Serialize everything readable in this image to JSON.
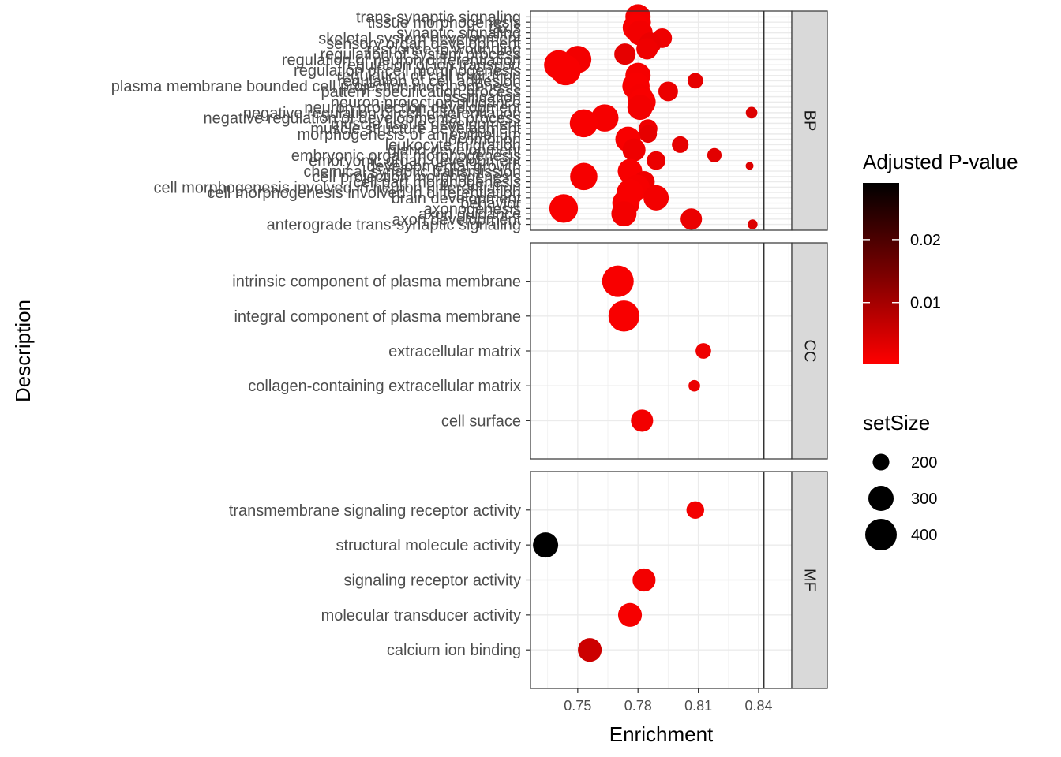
{
  "chart_data": {
    "type": "scatter",
    "xlabel": "Enrichment",
    "ylabel": "Description",
    "x_ticks": [
      0.75,
      0.78,
      0.81,
      0.84
    ],
    "x_tick_labels": [
      "0.75",
      "0.78",
      "0.81",
      "0.84"
    ],
    "xlim": [
      0.7265,
      0.8565
    ],
    "vline_x": 0.8425,
    "grid": true,
    "legend_position": "right",
    "legend_color": {
      "title": "Adjusted P-value",
      "labels": [
        "0.02",
        "0.01"
      ],
      "ticks": [
        0.02,
        0.01
      ],
      "range": [
        0.0002,
        0.029
      ],
      "low_color": "#ff0000",
      "high_color": "#000000"
    },
    "legend_size": {
      "title": "setSize",
      "labels": [
        "200",
        "300",
        "400"
      ],
      "values": [
        200,
        300,
        400
      ]
    },
    "facets": [
      {
        "label": "BP",
        "categories": [
          "trans-synaptic signaling",
          "tissue morphogenesis",
          "taxis",
          "synaptic signaling",
          "skeletal system development",
          "sensory organ development",
          "response to wounding",
          "regulation of system process",
          "regulation of neuron differentiation",
          "regulation of ion transport",
          "regulation of cell morphogenesis",
          "regulation of cell migration",
          "regulation of cell adhesion",
          "plasma membrane bounded cell projection morphogenesis",
          "pattern specification process",
          "ossification",
          "neuron projection guidance",
          "neuron projection development",
          "negative regulation of cell differentiation",
          "negative regulation of developmental process",
          "muscle tissue development",
          "muscle structure development",
          "morphogenesis of an epithelium",
          "locomotion",
          "leukocyte migration",
          "gland development",
          "embryonic organ morphogenesis",
          "embryonic organ development",
          "developmental growth",
          "chemical synaptic transmission",
          "cell projection morphogenesis",
          "cell part morphogenesis",
          "cell morphogenesis involved in neuron differentiation",
          "cell morphogenesis involved in differentiation",
          "brain development",
          "behavior",
          "axonogenesis",
          "axon guidance",
          "axon development",
          "anterograde trans-synaptic signaling"
        ],
        "points": [
          {
            "y": "trans-synaptic signaling",
            "x": 0.78,
            "setSize": 300,
            "padj": 0.0015
          },
          {
            "y": "tissue morphogenesis",
            "x": 0.7805,
            "setSize": 280,
            "padj": 0.0012
          },
          {
            "y": "taxis",
            "x": 0.779,
            "setSize": 320,
            "padj": 0.001
          },
          {
            "y": "synaptic signaling",
            "x": 0.781,
            "setSize": 300,
            "padj": 0.0015
          },
          {
            "y": "skeletal system development",
            "x": 0.792,
            "setSize": 230,
            "padj": 0.002
          },
          {
            "y": "sensory organ development",
            "x": 0.786,
            "setSize": 260,
            "padj": 0.0025
          },
          {
            "y": "response to wounding",
            "x": 0.7845,
            "setSize": 250,
            "padj": 0.002
          },
          {
            "y": "regulation of system process",
            "x": 0.7735,
            "setSize": 250,
            "padj": 0.003
          },
          {
            "y": "regulation of neuron differentiation",
            "x": 0.75,
            "setSize": 330,
            "padj": 0.0015
          },
          {
            "y": "regulation of ion transport",
            "x": 0.7405,
            "setSize": 360,
            "padj": 0.001
          },
          {
            "y": "regulation of cell morphogenesis",
            "x": 0.744,
            "setSize": 380,
            "padj": 0.001
          },
          {
            "y": "regulation of cell migration",
            "x": 0.78,
            "setSize": 300,
            "padj": 0.0012
          },
          {
            "y": "regulation of cell adhesion",
            "x": 0.8085,
            "setSize": 190,
            "padj": 0.003
          },
          {
            "y": "plasma membrane bounded cell projection morphogenesis",
            "x": 0.779,
            "setSize": 330,
            "padj": 0.001
          },
          {
            "y": "pattern specification process",
            "x": 0.795,
            "setSize": 230,
            "padj": 0.0025
          },
          {
            "y": "ossification",
            "x": 0.781,
            "setSize": 300,
            "padj": 0.0012
          },
          {
            "y": "neuron projection guidance",
            "x": 0.782,
            "setSize": 330,
            "padj": 0.001
          },
          {
            "y": "neuron projection development",
            "x": 0.781,
            "setSize": 300,
            "padj": 0.0015
          },
          {
            "y": "negative regulation of cell differentiation",
            "x": 0.8365,
            "setSize": 160,
            "padj": 0.004
          },
          {
            "y": "negative regulation of developmental process",
            "x": 0.7635,
            "setSize": 330,
            "padj": 0.0012
          },
          {
            "y": "muscle tissue development",
            "x": 0.753,
            "setSize": 340,
            "padj": 0.001
          },
          {
            "y": "muscle structure development",
            "x": 0.785,
            "setSize": 220,
            "padj": 0.002
          },
          {
            "y": "morphogenesis of an epithelium",
            "x": 0.785,
            "setSize": 210,
            "padj": 0.003
          },
          {
            "y": "locomotion",
            "x": 0.775,
            "setSize": 300,
            "padj": 0.001
          },
          {
            "y": "leukocyte migration",
            "x": 0.801,
            "setSize": 200,
            "padj": 0.003
          },
          {
            "y": "gland development",
            "x": 0.778,
            "setSize": 270,
            "padj": 0.002
          },
          {
            "y": "embryonic organ morphogenesis",
            "x": 0.818,
            "setSize": 180,
            "padj": 0.0035
          },
          {
            "y": "embryonic organ development",
            "x": 0.789,
            "setSize": 220,
            "padj": 0.0025
          },
          {
            "y": "developmental growth",
            "x": 0.8355,
            "setSize": 140,
            "padj": 0.004
          },
          {
            "y": "chemical synaptic transmission",
            "x": 0.776,
            "setSize": 290,
            "padj": 0.001
          },
          {
            "y": "cell projection morphogenesis",
            "x": 0.753,
            "setSize": 330,
            "padj": 0.0012
          },
          {
            "y": "cell part morphogenesis",
            "x": 0.783,
            "setSize": 250,
            "padj": 0.002
          },
          {
            "y": "cell morphogenesis involved in neuron differentiation",
            "x": 0.7795,
            "setSize": 300,
            "padj": 0.0012
          },
          {
            "y": "cell morphogenesis involved in differentiation",
            "x": 0.776,
            "setSize": 320,
            "padj": 0.001
          },
          {
            "y": "brain development",
            "x": 0.789,
            "setSize": 300,
            "padj": 0.0015
          },
          {
            "y": "behavior",
            "x": 0.774,
            "setSize": 330,
            "padj": 0.001
          },
          {
            "y": "axonogenesis",
            "x": 0.743,
            "setSize": 350,
            "padj": 0.001
          },
          {
            "y": "axon guidance",
            "x": 0.773,
            "setSize": 300,
            "padj": 0.0015
          },
          {
            "y": "axon development",
            "x": 0.8065,
            "setSize": 250,
            "padj": 0.0025
          },
          {
            "y": "anterograde trans-synaptic signaling",
            "x": 0.837,
            "setSize": 150,
            "padj": 0.004
          }
        ]
      },
      {
        "label": "CC",
        "categories": [
          "intrinsic component of plasma membrane",
          "integral component of plasma membrane",
          "extracellular matrix",
          "collagen-containing extracellular matrix",
          "cell surface"
        ],
        "points": [
          {
            "y": "intrinsic component of plasma membrane",
            "x": 0.77,
            "setSize": 400,
            "padj": 0.001
          },
          {
            "y": "integral component of plasma membrane",
            "x": 0.773,
            "setSize": 390,
            "padj": 0.001
          },
          {
            "y": "extracellular matrix",
            "x": 0.8125,
            "setSize": 190,
            "padj": 0.002
          },
          {
            "y": "collagen-containing extracellular matrix",
            "x": 0.808,
            "setSize": 160,
            "padj": 0.0025
          },
          {
            "y": "cell surface",
            "x": 0.782,
            "setSize": 260,
            "padj": 0.0015
          }
        ]
      },
      {
        "label": "MF",
        "categories": [
          "transmembrane signaling receptor activity",
          "structural molecule activity",
          "signaling receptor activity",
          "molecular transducer activity",
          "calcium ion binding"
        ],
        "points": [
          {
            "y": "transmembrane signaling receptor activity",
            "x": 0.8085,
            "setSize": 210,
            "padj": 0.0015
          },
          {
            "y": "structural molecule activity",
            "x": 0.734,
            "setSize": 300,
            "padj": 0.029
          },
          {
            "y": "signaling receptor activity",
            "x": 0.783,
            "setSize": 270,
            "padj": 0.0015
          },
          {
            "y": "molecular transducer activity",
            "x": 0.776,
            "setSize": 280,
            "padj": 0.0012
          },
          {
            "y": "calcium ion binding",
            "x": 0.756,
            "setSize": 280,
            "padj": 0.006
          }
        ]
      }
    ]
  }
}
